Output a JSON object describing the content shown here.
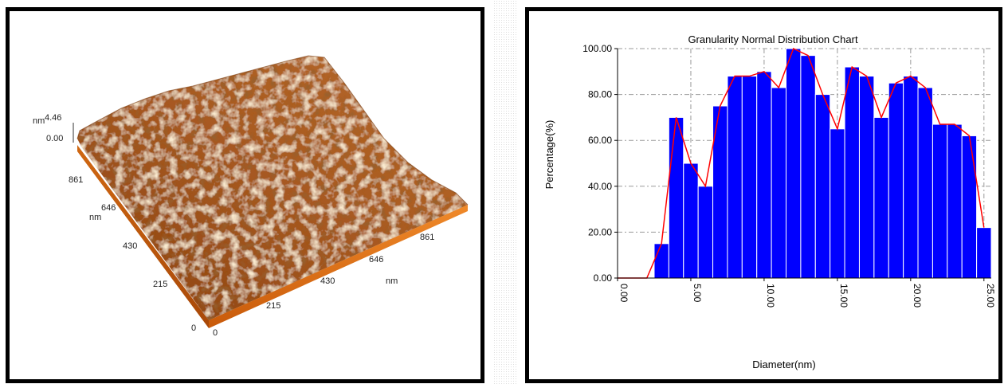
{
  "afm": {
    "z_max": "4.46",
    "z_min": "0.00",
    "z_unit": "nm",
    "y_ticks": [
      "861",
      "646",
      "430",
      "215",
      "0"
    ],
    "y_unit": "nm",
    "x_ticks": [
      "0",
      "215",
      "430",
      "646",
      "861"
    ],
    "x_unit": "nm",
    "colors": {
      "surface_dark": "#6b2f08",
      "surface_mid": "#b8661f",
      "surface_light": "#f3dcb0",
      "base_front": "#e67a1e",
      "base_side": "#c85a0a"
    }
  },
  "chart_data": {
    "type": "bar",
    "title": "Granularity Normal Distribution  Chart",
    "xlabel": "Diameter(nm)",
    "ylabel": "Percentage(%)",
    "xlim": [
      0,
      25.5
    ],
    "ylim": [
      0,
      100
    ],
    "x_ticks": [
      "0.00",
      "5.00",
      "10.00",
      "15.00",
      "20.00",
      "25.00"
    ],
    "y_ticks": [
      "0.00",
      "20.00",
      "40.00",
      "60.00",
      "80.00",
      "100.00"
    ],
    "bar_color": "#0000ff",
    "line_color": "#ff0000",
    "grid": true,
    "bars": {
      "x": [
        3,
        4,
        5,
        6,
        7,
        8,
        9,
        10,
        11,
        12,
        13,
        14,
        15,
        16,
        17,
        18,
        19,
        20,
        21,
        22,
        23,
        24,
        25
      ],
      "values": [
        15,
        70,
        50,
        40,
        75,
        88,
        88,
        90,
        83,
        100,
        97,
        80,
        65,
        92,
        88,
        70,
        85,
        88,
        83,
        67,
        67,
        62,
        22
      ]
    },
    "line": {
      "x": [
        0,
        2,
        3,
        4,
        5,
        6,
        7,
        8,
        9,
        10,
        11,
        12,
        13,
        14,
        15,
        16,
        17,
        18,
        19,
        20,
        21,
        22,
        23,
        24,
        25
      ],
      "values": [
        0,
        0,
        15,
        70,
        50,
        40,
        75,
        88,
        88,
        90,
        83,
        100,
        97,
        80,
        65,
        92,
        88,
        70,
        85,
        88,
        83,
        67,
        67,
        62,
        22
      ]
    }
  }
}
